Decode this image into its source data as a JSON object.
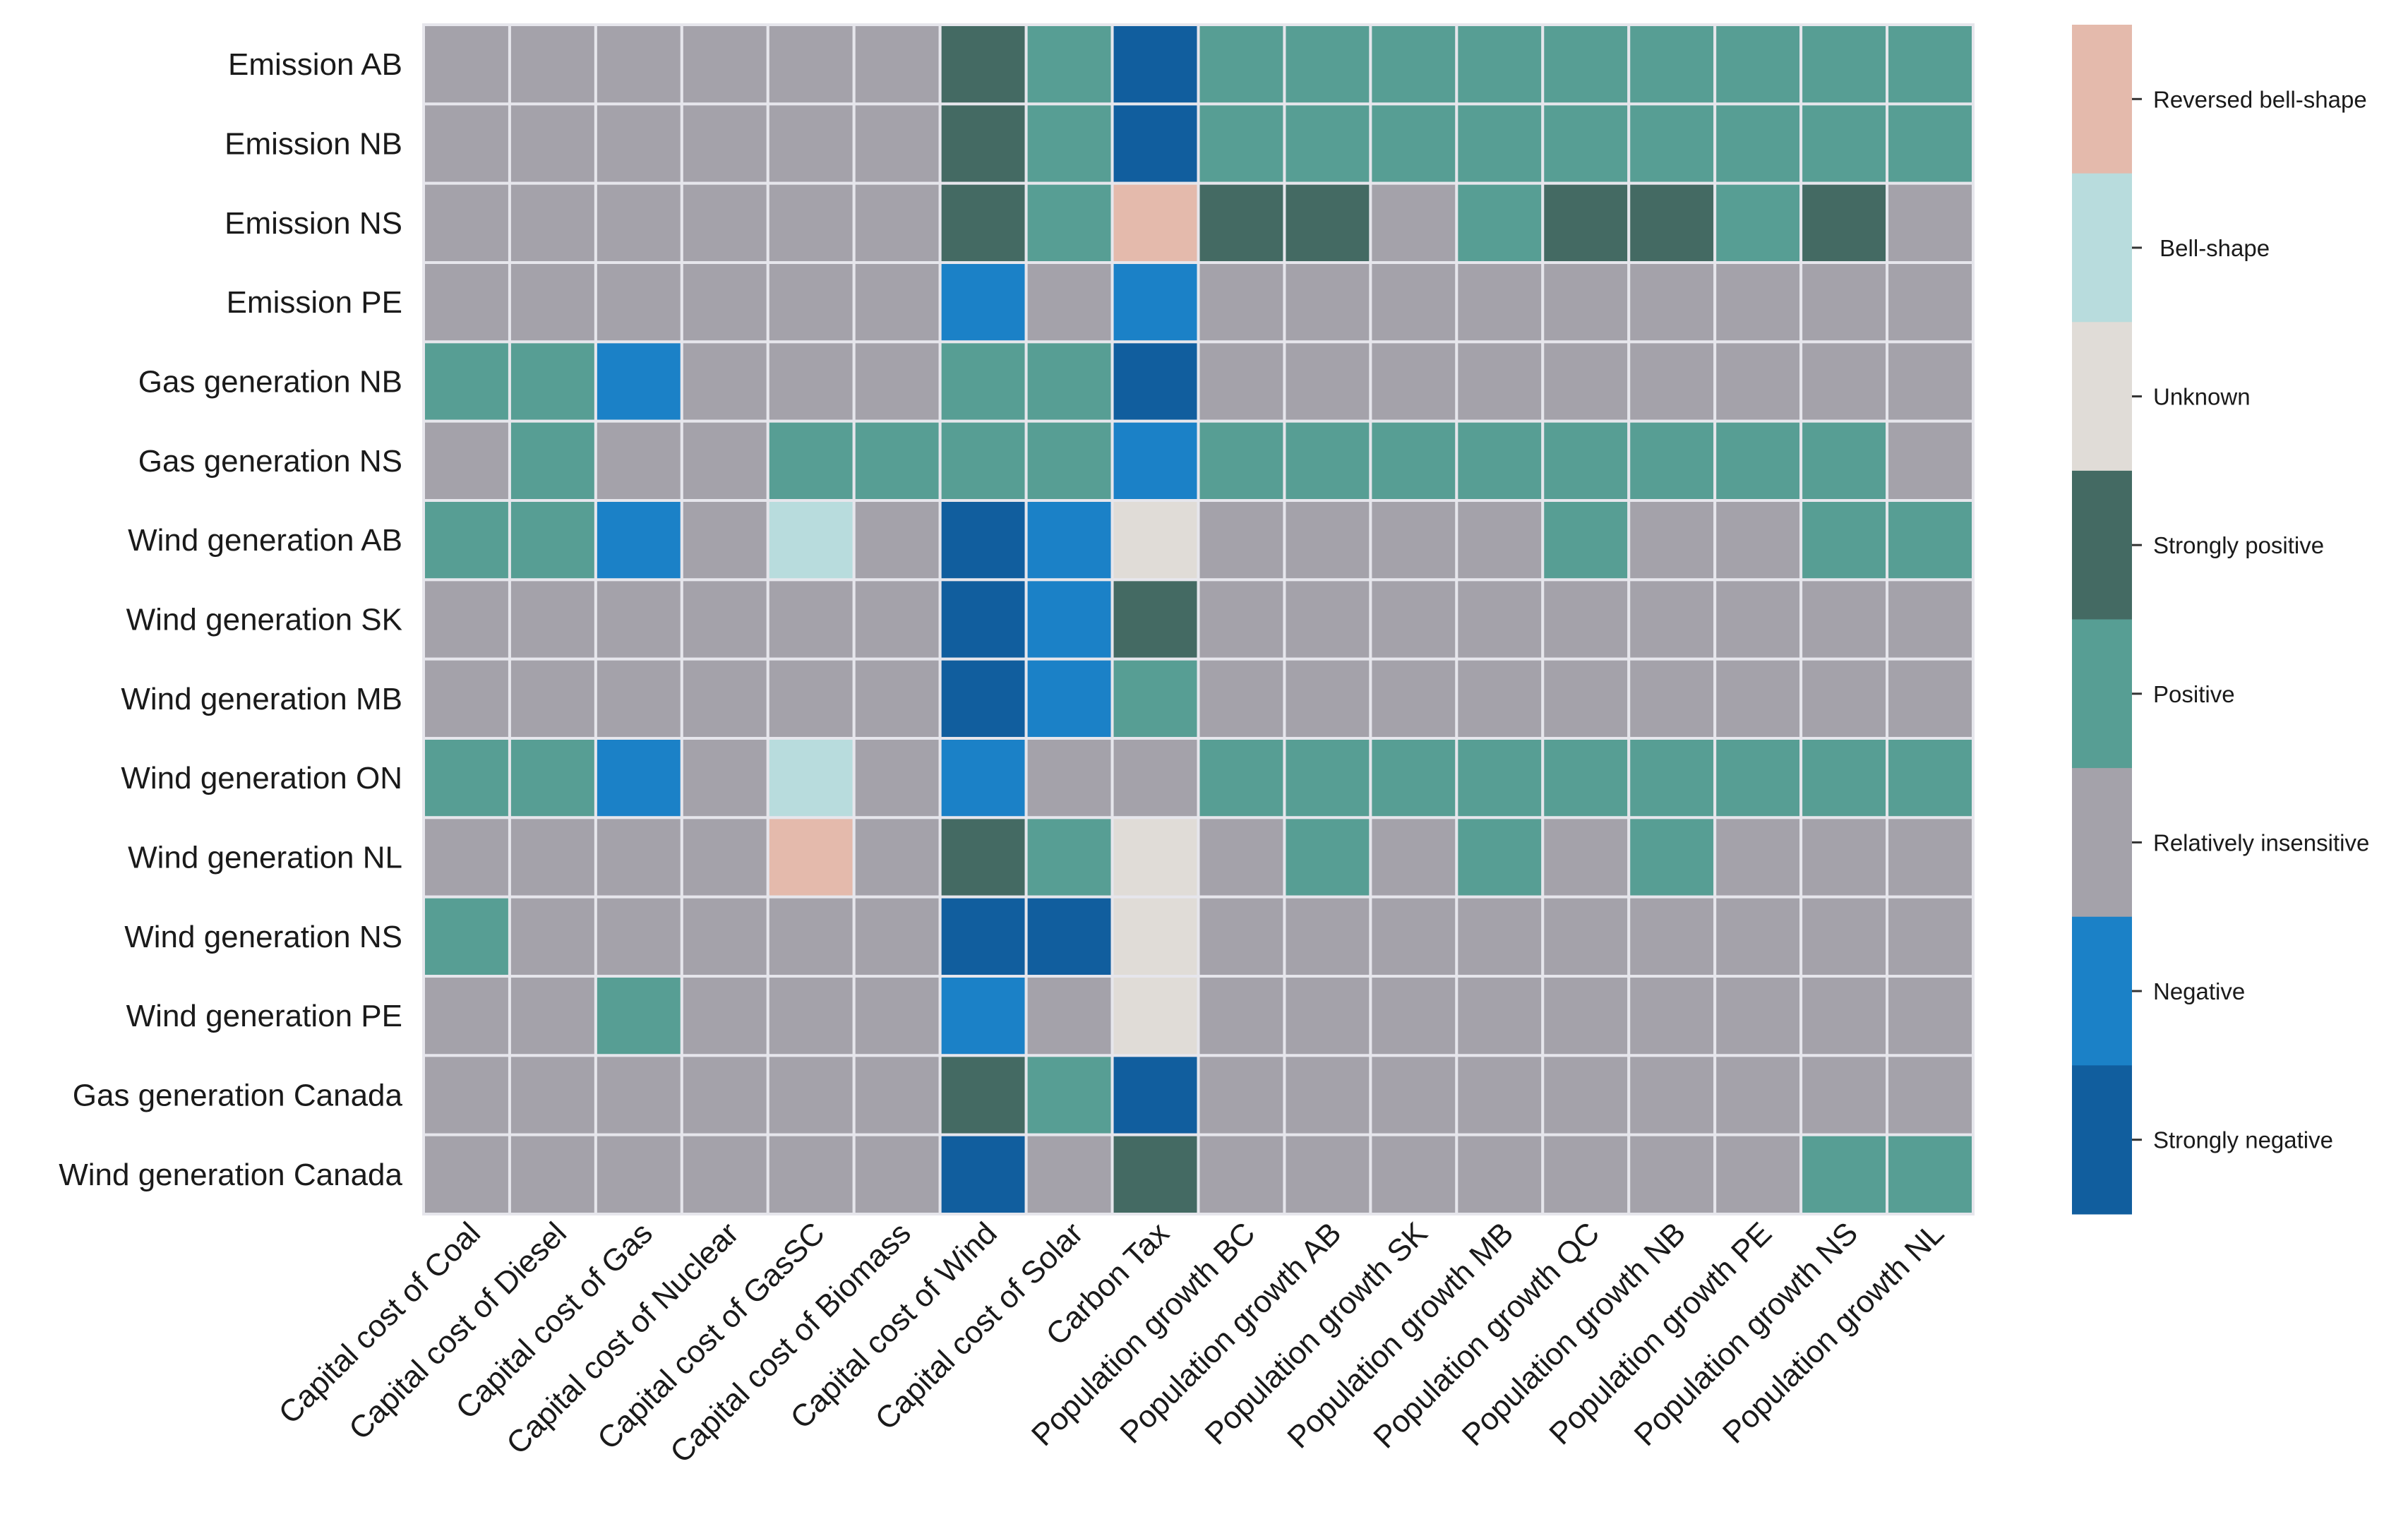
{
  "chart_data": {
    "type": "heatmap",
    "rows": [
      "Emission AB",
      "Emission NB",
      "Emission NS",
      "Emission PE",
      "Gas generation NB",
      "Gas generation NS",
      "Wind generation AB",
      "Wind generation SK",
      "Wind generation MB",
      "Wind generation ON",
      "Wind generation NL",
      "Wind generation NS",
      "Wind generation PE",
      "Gas generation Canada",
      "Wind generation Canada"
    ],
    "columns": [
      "Capital cost of Coal",
      "Capital cost of Diesel",
      "Capital cost of Gas",
      "Capital cost of Nuclear",
      "Capital cost of GasSC",
      "Capital cost of Biomass",
      "Capital cost of Wind",
      "Capital cost of Solar",
      "Carbon Tax",
      "Population growth BC",
      "Population growth AB",
      "Population growth SK",
      "Population growth MB",
      "Population growth QC",
      "Population growth NB",
      "Population growth PE",
      "Population growth NS",
      "Population growth NL"
    ],
    "categories": [
      "Strongly negative",
      "Negative",
      "Relatively insensitive",
      "Positive",
      "Strongly positive",
      "Unknown",
      " Bell-shape",
      "Reversed bell-shape"
    ],
    "category_codes": [
      0,
      1,
      2,
      3,
      4,
      5,
      6,
      7
    ],
    "colors": [
      "#115e9e",
      "#1b81c7",
      "#a4a2aa",
      "#579e94",
      "#446a63",
      "#e0dcd7",
      "#b8dcdd",
      "#e4baac"
    ],
    "values": [
      [
        2,
        2,
        2,
        2,
        2,
        2,
        4,
        3,
        0,
        3,
        3,
        3,
        3,
        3,
        3,
        3,
        3,
        3
      ],
      [
        2,
        2,
        2,
        2,
        2,
        2,
        4,
        3,
        0,
        3,
        3,
        3,
        3,
        3,
        3,
        3,
        3,
        3
      ],
      [
        2,
        2,
        2,
        2,
        2,
        2,
        4,
        3,
        7,
        4,
        4,
        2,
        3,
        4,
        4,
        3,
        4,
        2
      ],
      [
        2,
        2,
        2,
        2,
        2,
        2,
        1,
        2,
        1,
        2,
        2,
        2,
        2,
        2,
        2,
        2,
        2,
        2
      ],
      [
        3,
        3,
        1,
        2,
        2,
        2,
        3,
        3,
        0,
        2,
        2,
        2,
        2,
        2,
        2,
        2,
        2,
        2
      ],
      [
        2,
        3,
        2,
        2,
        3,
        3,
        3,
        3,
        1,
        3,
        3,
        3,
        3,
        3,
        3,
        3,
        3,
        2
      ],
      [
        3,
        3,
        1,
        2,
        6,
        2,
        0,
        1,
        5,
        2,
        2,
        2,
        2,
        3,
        2,
        2,
        3,
        3
      ],
      [
        2,
        2,
        2,
        2,
        2,
        2,
        0,
        1,
        4,
        2,
        2,
        2,
        2,
        2,
        2,
        2,
        2,
        2
      ],
      [
        2,
        2,
        2,
        2,
        2,
        2,
        0,
        1,
        3,
        2,
        2,
        2,
        2,
        2,
        2,
        2,
        2,
        2
      ],
      [
        3,
        3,
        1,
        2,
        6,
        2,
        1,
        2,
        2,
        3,
        3,
        3,
        3,
        3,
        3,
        3,
        3,
        3
      ],
      [
        2,
        2,
        2,
        2,
        7,
        2,
        4,
        3,
        5,
        2,
        3,
        2,
        3,
        2,
        3,
        2,
        2,
        2
      ],
      [
        3,
        2,
        2,
        2,
        2,
        2,
        0,
        0,
        5,
        2,
        2,
        2,
        2,
        2,
        2,
        2,
        2,
        2
      ],
      [
        2,
        2,
        3,
        2,
        2,
        2,
        1,
        2,
        5,
        2,
        2,
        2,
        2,
        2,
        2,
        2,
        2,
        2
      ],
      [
        2,
        2,
        2,
        2,
        2,
        2,
        4,
        3,
        0,
        2,
        2,
        2,
        2,
        2,
        2,
        2,
        2,
        2
      ],
      [
        2,
        2,
        2,
        2,
        2,
        2,
        0,
        2,
        4,
        2,
        2,
        2,
        2,
        2,
        2,
        2,
        3,
        3
      ]
    ],
    "colorbar": {
      "position": "right",
      "order_top_to_bottom": [
        "Reversed bell-shape",
        " Bell-shape",
        "Unknown",
        "Strongly positive",
        "Positive",
        "Relatively insensitive",
        "Negative",
        "Strongly negative"
      ]
    },
    "title": "",
    "xlabel": "",
    "ylabel": "",
    "grid": true
  }
}
